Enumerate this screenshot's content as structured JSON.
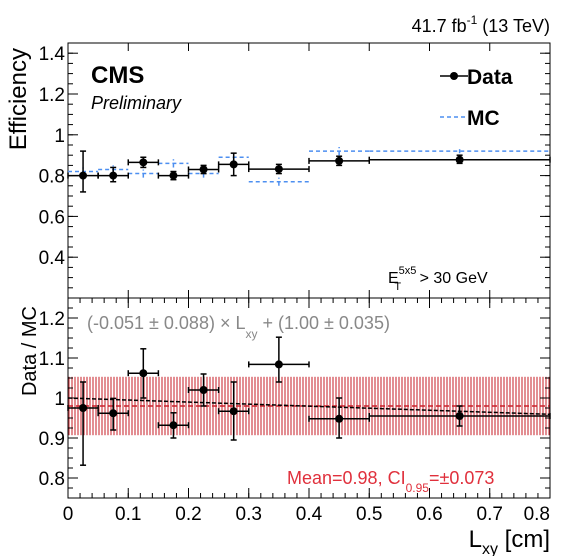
{
  "header": {
    "lumi_value": "41.7 fb",
    "lumi_exp": "-1",
    "lumi_energy": " (13 TeV)"
  },
  "labels": {
    "cms": "CMS",
    "preliminary": "Preliminary",
    "cut_E": "E",
    "cut_sup": "5x5",
    "cut_sub": "T",
    "cut_rest": " > 30 GeV",
    "legend_data": "Data",
    "legend_mc": "MC"
  },
  "colors": {
    "data": "#000000",
    "mc": "#4d8ff0",
    "band": "#c8202a",
    "fit_text": "#888888",
    "mean_text": "#e0303c"
  },
  "chart_data": [
    {
      "type": "scatter",
      "ylabel": "Efficiency",
      "xlim": [
        0,
        0.8
      ],
      "ylim": [
        0.2,
        1.45
      ],
      "yticks": [
        0.4,
        0.6,
        0.8,
        1,
        1.2,
        1.4
      ],
      "ytick_labels": [
        "0.4",
        "0.6",
        "0.8",
        "1",
        "1.2",
        "1.4"
      ],
      "series": [
        {
          "name": "Data",
          "points": [
            {
              "x": 0.025,
              "xlo": 0.0,
              "xhi": 0.05,
              "y": 0.8,
              "ylo": 0.72,
              "yhi": 0.92
            },
            {
              "x": 0.075,
              "xlo": 0.05,
              "xhi": 0.1,
              "y": 0.8,
              "ylo": 0.77,
              "yhi": 0.84
            },
            {
              "x": 0.125,
              "xlo": 0.1,
              "xhi": 0.15,
              "y": 0.865,
              "ylo": 0.84,
              "yhi": 0.89
            },
            {
              "x": 0.175,
              "xlo": 0.15,
              "xhi": 0.2,
              "y": 0.8,
              "ylo": 0.78,
              "yhi": 0.82
            },
            {
              "x": 0.225,
              "xlo": 0.2,
              "xhi": 0.25,
              "y": 0.83,
              "ylo": 0.81,
              "yhi": 0.85
            },
            {
              "x": 0.275,
              "xlo": 0.25,
              "xhi": 0.3,
              "y": 0.855,
              "ylo": 0.8,
              "yhi": 0.91
            },
            {
              "x": 0.35,
              "xlo": 0.3,
              "xhi": 0.4,
              "y": 0.832,
              "ylo": 0.81,
              "yhi": 0.855
            },
            {
              "x": 0.45,
              "xlo": 0.4,
              "xhi": 0.5,
              "y": 0.872,
              "ylo": 0.85,
              "yhi": 0.895
            },
            {
              "x": 0.65,
              "xlo": 0.5,
              "xhi": 0.8,
              "y": 0.878,
              "ylo": 0.86,
              "yhi": 0.9
            }
          ]
        },
        {
          "name": "MC",
          "points": [
            {
              "x": 0.025,
              "xlo": 0.0,
              "xhi": 0.05,
              "y": 0.82,
              "ylo": 0.8,
              "yhi": 0.84
            },
            {
              "x": 0.075,
              "xlo": 0.05,
              "xhi": 0.1,
              "y": 0.83,
              "ylo": 0.81,
              "yhi": 0.85
            },
            {
              "x": 0.125,
              "xlo": 0.1,
              "xhi": 0.15,
              "y": 0.81,
              "ylo": 0.79,
              "yhi": 0.83
            },
            {
              "x": 0.175,
              "xlo": 0.15,
              "xhi": 0.2,
              "y": 0.86,
              "ylo": 0.84,
              "yhi": 0.88
            },
            {
              "x": 0.225,
              "xlo": 0.2,
              "xhi": 0.25,
              "y": 0.81,
              "ylo": 0.79,
              "yhi": 0.83
            },
            {
              "x": 0.275,
              "xlo": 0.25,
              "xhi": 0.3,
              "y": 0.89,
              "ylo": 0.87,
              "yhi": 0.91
            },
            {
              "x": 0.35,
              "xlo": 0.3,
              "xhi": 0.4,
              "y": 0.77,
              "ylo": 0.75,
              "yhi": 0.79
            },
            {
              "x": 0.45,
              "xlo": 0.4,
              "xhi": 0.5,
              "y": 0.92,
              "ylo": 0.9,
              "yhi": 0.94
            },
            {
              "x": 0.65,
              "xlo": 0.5,
              "xhi": 0.8,
              "y": 0.92,
              "ylo": 0.91,
              "yhi": 0.93
            }
          ]
        }
      ]
    },
    {
      "type": "scatter",
      "ylabel": "Data / MC",
      "xlabel": "L",
      "xlabel_sub": "xy",
      "xlabel_unit": " [cm]",
      "xlim": [
        0,
        0.8
      ],
      "ylim": [
        0.75,
        1.25
      ],
      "xticks": [
        0,
        0.1,
        0.2,
        0.3,
        0.4,
        0.5,
        0.6,
        0.7,
        0.8
      ],
      "xtick_labels": [
        "0",
        "0.1",
        "0.2",
        "0.3",
        "0.4",
        "0.5",
        "0.6",
        "0.7",
        "0.8"
      ],
      "yticks": [
        0.8,
        0.9,
        1,
        1.1,
        1.2
      ],
      "ytick_labels": [
        "0.8",
        "0.9",
        "1",
        "1.1",
        "1.2"
      ],
      "series": [
        {
          "name": "Data / MC",
          "points": [
            {
              "x": 0.025,
              "xlo": 0.0,
              "xhi": 0.05,
              "y": 0.975,
              "ylo": 0.832,
              "yhi": 1.04
            },
            {
              "x": 0.075,
              "xlo": 0.05,
              "xhi": 0.1,
              "y": 0.962,
              "ylo": 0.92,
              "yhi": 0.999
            },
            {
              "x": 0.125,
              "xlo": 0.1,
              "xhi": 0.15,
              "y": 1.062,
              "ylo": 1.0,
              "yhi": 1.123
            },
            {
              "x": 0.175,
              "xlo": 0.15,
              "xhi": 0.2,
              "y": 0.932,
              "ylo": 0.9,
              "yhi": 0.963
            },
            {
              "x": 0.225,
              "xlo": 0.2,
              "xhi": 0.25,
              "y": 1.02,
              "ylo": 0.98,
              "yhi": 1.06
            },
            {
              "x": 0.275,
              "xlo": 0.25,
              "xhi": 0.3,
              "y": 0.967,
              "ylo": 0.895,
              "yhi": 1.04
            },
            {
              "x": 0.35,
              "xlo": 0.3,
              "xhi": 0.4,
              "y": 1.084,
              "ylo": 1.04,
              "yhi": 1.152
            },
            {
              "x": 0.45,
              "xlo": 0.4,
              "xhi": 0.5,
              "y": 0.948,
              "ylo": 0.9,
              "yhi": 1.0
            },
            {
              "x": 0.65,
              "xlo": 0.5,
              "xhi": 0.8,
              "y": 0.955,
              "ylo": 0.93,
              "yhi": 0.98
            }
          ]
        }
      ],
      "fit": {
        "slope": -0.051,
        "intercept": 1.0
      },
      "mean_band": {
        "mean": 0.98,
        "half_width": 0.073
      },
      "fit_label": {
        "pre": "(-0.051 ± 0.088) × L",
        "sub": "xy",
        "post": " + (1.00 ± 0.035)"
      },
      "mean_label": {
        "pre": "Mean=0.98, CI",
        "sub": "0.95",
        "post": "=±0.073"
      }
    }
  ]
}
